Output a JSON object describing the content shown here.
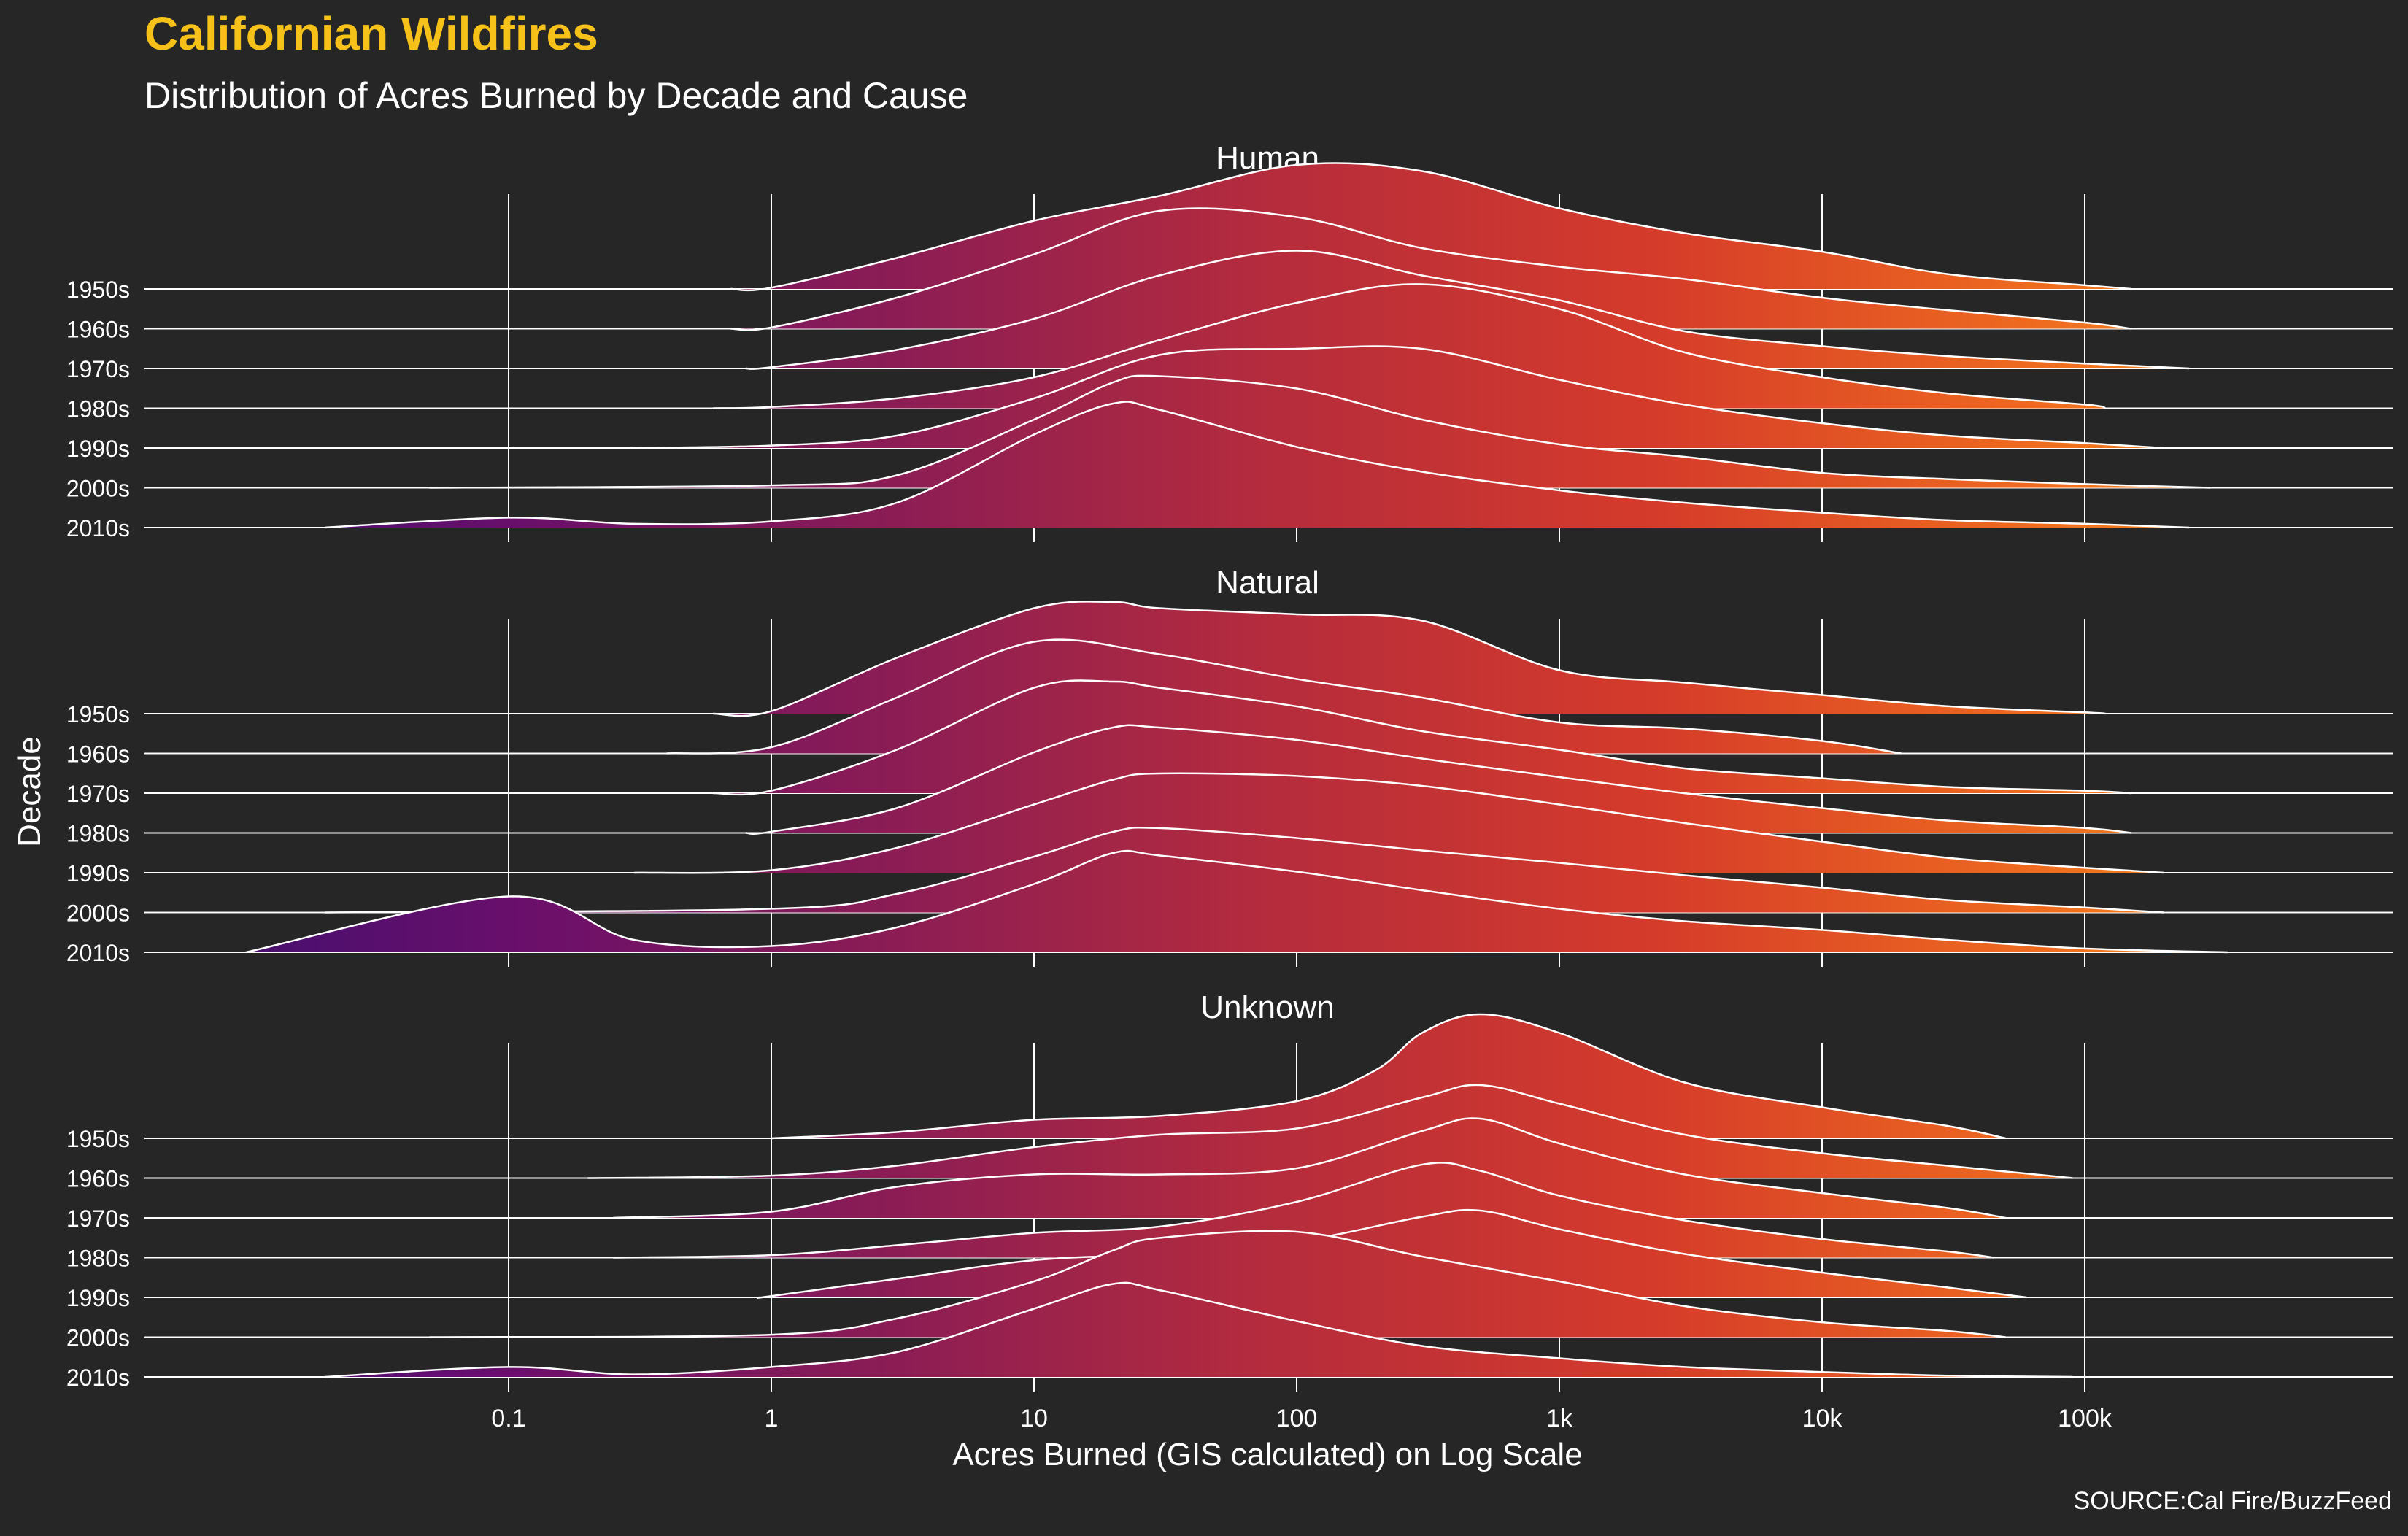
{
  "chart_data": {
    "type": "area",
    "subtype": "ridgeline-density",
    "title": "Californian Wildfires",
    "subtitle": "Distribution of Acres Burned by Decade and Cause",
    "xlabel": "Acres Burned (GIS calculated) on Log Scale",
    "ylabel": "Decade",
    "caption": "SOURCE:Cal Fire/BuzzFeed",
    "x_scale": "log10",
    "xlim": [
      0.003,
      10000000
    ],
    "x_ticks": [
      0.1,
      1,
      10,
      100,
      1000,
      10000,
      100000
    ],
    "x_tick_labels": [
      "0.1",
      "1",
      "10",
      "100",
      "1k",
      "10k",
      "100k"
    ],
    "decades": [
      "1950s",
      "1960s",
      "1970s",
      "1980s",
      "1990s",
      "2000s",
      "2010s"
    ],
    "fill_gradient": [
      "#3b0f70",
      "#6a0f6b",
      "#8c1d54",
      "#b62c3c",
      "#d53b2a",
      "#ee6a1f",
      "#f9a21a"
    ],
    "colors": {
      "background": "#262626",
      "title": "#f6c21a",
      "text": "#ffffff",
      "line": "#ffffff"
    },
    "grid": true,
    "legend": "none",
    "panels": [
      {
        "cause": "Human",
        "series": [
          {
            "decade": "1950s",
            "x": [
              0.7,
              1,
              3,
              10,
              30,
              100,
              300,
              1000,
              3000,
              10000,
              30000,
              100000,
              150000
            ],
            "density": [
              0,
              0.01,
              0.25,
              0.55,
              0.75,
              1.0,
              0.95,
              0.65,
              0.45,
              0.3,
              0.12,
              0.03,
              0
            ]
          },
          {
            "decade": "1960s",
            "x": [
              0.7,
              1,
              3,
              10,
              30,
              100,
              300,
              1000,
              3000,
              10000,
              30000,
              100000,
              150000
            ],
            "density": [
              0,
              0.01,
              0.25,
              0.6,
              0.95,
              0.9,
              0.65,
              0.5,
              0.4,
              0.25,
              0.15,
              0.05,
              0
            ]
          },
          {
            "decade": "1970s",
            "x": [
              0.8,
              1,
              3,
              10,
              30,
              100,
              300,
              1000,
              3000,
              10000,
              30000,
              100000,
              250000
            ],
            "density": [
              0,
              0.01,
              0.15,
              0.4,
              0.75,
              0.95,
              0.75,
              0.55,
              0.3,
              0.18,
              0.1,
              0.04,
              0
            ]
          },
          {
            "decade": "1980s",
            "x": [
              0.6,
              1,
              3,
              10,
              30,
              100,
              300,
              1000,
              3000,
              10000,
              30000,
              100000,
              120000
            ],
            "density": [
              0,
              0.01,
              0.08,
              0.25,
              0.55,
              0.85,
              1.0,
              0.8,
              0.45,
              0.25,
              0.12,
              0.03,
              0
            ]
          },
          {
            "decade": "1990s",
            "x": [
              0.3,
              1,
              3,
              10,
              30,
              100,
              300,
              1000,
              3000,
              10000,
              30000,
              100000,
              200000
            ],
            "density": [
              0,
              0.02,
              0.1,
              0.4,
              0.75,
              0.8,
              0.8,
              0.55,
              0.35,
              0.2,
              0.1,
              0.04,
              0
            ]
          },
          {
            "decade": "2000s",
            "x": [
              0.05,
              1,
              3,
              10,
              20,
              30,
              100,
              300,
              1000,
              3000,
              10000,
              30000,
              100000,
              300000
            ],
            "density": [
              0,
              0.02,
              0.1,
              0.55,
              0.85,
              0.9,
              0.8,
              0.55,
              0.35,
              0.25,
              0.12,
              0.07,
              0.03,
              0
            ]
          },
          {
            "decade": "2010s",
            "x": [
              0.02,
              0.1,
              0.3,
              1,
              3,
              10,
              20,
              30,
              100,
              300,
              1000,
              3000,
              10000,
              30000,
              100000,
              250000
            ],
            "density": [
              0,
              0.08,
              0.03,
              0.05,
              0.2,
              0.75,
              1.0,
              0.95,
              0.65,
              0.45,
              0.3,
              0.2,
              0.12,
              0.06,
              0.03,
              0
            ]
          }
        ]
      },
      {
        "cause": "Natural",
        "series": [
          {
            "decade": "1950s",
            "x": [
              0.6,
              1,
              3,
              10,
              20,
              30,
              100,
              300,
              1000,
              3000,
              10000,
              30000,
              100000,
              120000
            ],
            "density": [
              0,
              0.02,
              0.45,
              0.85,
              0.9,
              0.85,
              0.8,
              0.75,
              0.35,
              0.25,
              0.15,
              0.06,
              0.01,
              0
            ]
          },
          {
            "decade": "1960s",
            "x": [
              0.4,
              1,
              3,
              10,
              30,
              100,
              300,
              1000,
              3000,
              10000,
              20000
            ],
            "density": [
              0,
              0.05,
              0.45,
              0.9,
              0.8,
              0.6,
              0.45,
              0.25,
              0.2,
              0.1,
              0
            ]
          },
          {
            "decade": "1970s",
            "x": [
              0.6,
              1,
              3,
              10,
              20,
              30,
              100,
              300,
              1000,
              3000,
              10000,
              30000,
              100000,
              150000
            ],
            "density": [
              0,
              0.02,
              0.35,
              0.85,
              0.9,
              0.85,
              0.7,
              0.5,
              0.35,
              0.2,
              0.12,
              0.05,
              0.02,
              0
            ]
          },
          {
            "decade": "1980s",
            "x": [
              0.8,
              1,
              3,
              10,
              20,
              30,
              100,
              300,
              1000,
              3000,
              10000,
              30000,
              100000,
              150000
            ],
            "density": [
              0,
              0.01,
              0.2,
              0.65,
              0.85,
              0.85,
              0.75,
              0.6,
              0.45,
              0.32,
              0.2,
              0.1,
              0.04,
              0
            ]
          },
          {
            "decade": "1990s",
            "x": [
              0.3,
              1,
              3,
              10,
              20,
              30,
              100,
              300,
              1000,
              3000,
              10000,
              30000,
              100000,
              200000
            ],
            "density": [
              0,
              0.02,
              0.2,
              0.55,
              0.75,
              0.8,
              0.78,
              0.7,
              0.55,
              0.4,
              0.25,
              0.12,
              0.04,
              0
            ]
          },
          {
            "decade": "2000s",
            "x": [
              0.02,
              1,
              3,
              10,
              20,
              30,
              100,
              300,
              1000,
              3000,
              10000,
              30000,
              100000,
              200000
            ],
            "density": [
              0,
              0.03,
              0.15,
              0.45,
              0.65,
              0.68,
              0.6,
              0.5,
              0.4,
              0.3,
              0.2,
              0.1,
              0.04,
              0
            ]
          },
          {
            "decade": "2010s",
            "x": [
              0.01,
              0.1,
              0.3,
              1,
              3,
              10,
              20,
              30,
              100,
              300,
              1000,
              3000,
              10000,
              30000,
              100000,
              350000
            ],
            "density": [
              0,
              0.45,
              0.1,
              0.05,
              0.2,
              0.55,
              0.8,
              0.78,
              0.65,
              0.5,
              0.35,
              0.25,
              0.18,
              0.1,
              0.03,
              0
            ]
          }
        ]
      },
      {
        "cause": "Unknown",
        "series": [
          {
            "decade": "1950s",
            "x": [
              1,
              3,
              10,
              30,
              100,
              200,
              300,
              500,
              1000,
              3000,
              10000,
              30000,
              50000
            ],
            "density": [
              0,
              0.05,
              0.15,
              0.18,
              0.3,
              0.55,
              0.85,
              1.0,
              0.85,
              0.45,
              0.25,
              0.1,
              0
            ]
          },
          {
            "decade": "1960s",
            "x": [
              0.2,
              1,
              3,
              10,
              30,
              100,
              300,
              500,
              1000,
              3000,
              10000,
              30000,
              90000
            ],
            "density": [
              0,
              0.02,
              0.1,
              0.25,
              0.35,
              0.4,
              0.65,
              0.75,
              0.6,
              0.35,
              0.2,
              0.1,
              0
            ]
          },
          {
            "decade": "1970s",
            "x": [
              0.25,
              1,
              3,
              10,
              30,
              100,
              300,
              500,
              1000,
              3000,
              10000,
              30000,
              50000
            ],
            "density": [
              0,
              0.05,
              0.25,
              0.35,
              0.35,
              0.4,
              0.7,
              0.8,
              0.6,
              0.35,
              0.2,
              0.08,
              0
            ]
          },
          {
            "decade": "1980s",
            "x": [
              0.25,
              1,
              3,
              10,
              30,
              100,
              300,
              500,
              1000,
              3000,
              10000,
              30000,
              45000
            ],
            "density": [
              0,
              0.02,
              0.1,
              0.2,
              0.25,
              0.45,
              0.75,
              0.7,
              0.5,
              0.3,
              0.15,
              0.05,
              0
            ]
          },
          {
            "decade": "1990s",
            "x": [
              0.9,
              1,
              3,
              10,
              30,
              100,
              300,
              500,
              1000,
              3000,
              10000,
              30000,
              60000
            ],
            "density": [
              0,
              0.01,
              0.15,
              0.3,
              0.35,
              0.45,
              0.65,
              0.7,
              0.55,
              0.35,
              0.2,
              0.08,
              0
            ]
          },
          {
            "decade": "2000s",
            "x": [
              0.05,
              1,
              3,
              10,
              20,
              30,
              100,
              300,
              1000,
              3000,
              10000,
              30000,
              50000
            ],
            "density": [
              0,
              0.02,
              0.15,
              0.45,
              0.7,
              0.8,
              0.85,
              0.65,
              0.45,
              0.25,
              0.12,
              0.05,
              0
            ]
          },
          {
            "decade": "2010s",
            "x": [
              0.02,
              0.1,
              0.3,
              1,
              3,
              10,
              20,
              30,
              100,
              300,
              1000,
              3000,
              10000,
              30000,
              90000
            ],
            "density": [
              0,
              0.08,
              0.02,
              0.08,
              0.2,
              0.55,
              0.75,
              0.7,
              0.45,
              0.25,
              0.15,
              0.08,
              0.04,
              0.01,
              0
            ]
          }
        ]
      }
    ]
  }
}
